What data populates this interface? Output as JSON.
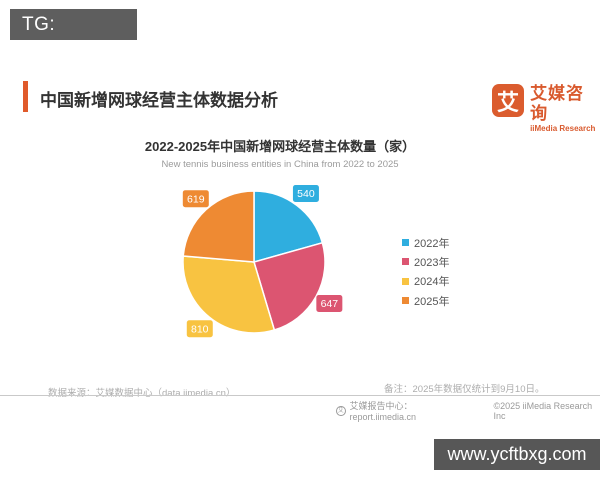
{
  "watermarks": {
    "tg": "TG: MYYJJPP",
    "site": "www.ycftbxg.com"
  },
  "header": {
    "title": "中国新增网球经营主体数据分析",
    "accent_color": "#E05A2B",
    "logo": {
      "icon_char": "艾",
      "cn": "艾媒咨询",
      "en": "iiMedia Research",
      "brand_color": "#DB5C2E"
    }
  },
  "chart_data": {
    "type": "pie",
    "title": "2022-2025年中国新增网球经营主体数量（家）",
    "subtitle": "New tennis business entities in China from 2022 to 2025",
    "legend_position": "right",
    "start_angle_deg": 0,
    "direction": "clockwise",
    "segments": [
      {
        "label": "2022年",
        "value": 540,
        "color": "#2FAEDF"
      },
      {
        "label": "2023年",
        "value": 647,
        "color": "#DC5571"
      },
      {
        "label": "2024年",
        "value": 810,
        "color": "#F8C341"
      },
      {
        "label": "2025年",
        "value": 619,
        "color": "#EE8A33"
      }
    ]
  },
  "footer": {
    "source": "数据来源：艾媒数据中心（data.iimedia.cn）",
    "note": "备注：2025年数据仅统计到9月10日。",
    "badge_char": "艾",
    "report_center": "艾媒报告中心：report.iimedia.cn",
    "copyright": "©2025  iiMedia Research  Inc"
  }
}
